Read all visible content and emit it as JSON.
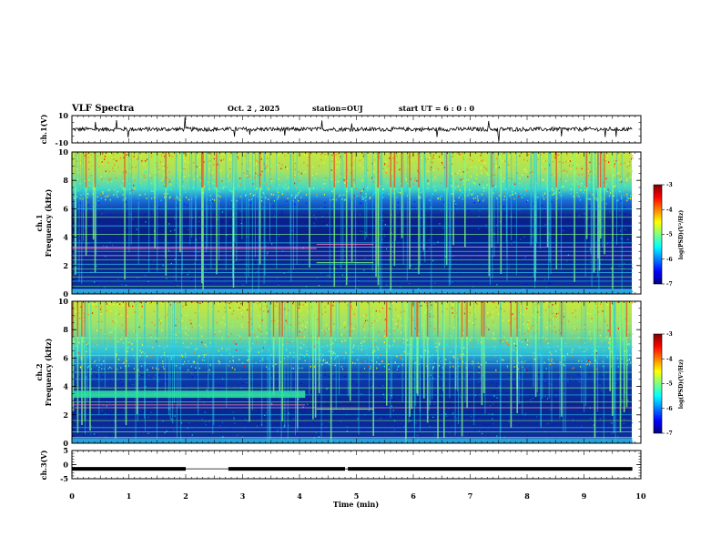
{
  "header": {
    "title": "VLF Spectra",
    "date": "Oct. 2 , 2025",
    "station": "station=OUJ",
    "start": "start  UT =  6 : 0  : 0"
  },
  "chart_data": [
    {
      "type": "line",
      "name": "ch1-waveform",
      "ylabel": "ch.1(V)",
      "ylim": [
        -10,
        10
      ],
      "yticks": [
        "10",
        "-10"
      ],
      "xlim": [
        0,
        10
      ],
      "baseline": 0,
      "color": "#000000"
    },
    {
      "type": "heatmap",
      "name": "ch1-spectrogram",
      "ylabel_line1": "ch.1",
      "ylabel_line2": "Frequency (kHz)",
      "ylim": [
        0,
        10
      ],
      "yticks": [
        "0",
        "2",
        "4",
        "6",
        "8",
        "10"
      ],
      "xlim": [
        0,
        10
      ],
      "data_end_min": 9.85,
      "colorbar": {
        "label": "log(PSD)(V²/Hz)",
        "range": [
          -7,
          -3
        ],
        "ticks": [
          "-3",
          "-4",
          "-5",
          "-6",
          "-7"
        ]
      }
    },
    {
      "type": "heatmap",
      "name": "ch2-spectrogram",
      "ylabel_line1": "ch.2",
      "ylabel_line2": "Frequency (kHz)",
      "ylim": [
        0,
        10
      ],
      "yticks": [
        "0",
        "2",
        "4",
        "6",
        "8",
        "10"
      ],
      "xlim": [
        0,
        10
      ],
      "data_end_min": 9.85,
      "colorbar": {
        "label": "log(PSD)(V²/Hz)",
        "range": [
          -7,
          -3
        ],
        "ticks": [
          "-3",
          "-4",
          "-5",
          "-6",
          "-7"
        ]
      }
    },
    {
      "type": "line",
      "name": "ch3-waveform",
      "ylabel": "ch.3(V)",
      "ylim": [
        -5,
        5
      ],
      "yticks": [
        "5",
        "0",
        "-5"
      ],
      "xlim": [
        0,
        10
      ],
      "baseline": -1.5,
      "gaps_min": [
        [
          2.0,
          2.75
        ],
        [
          4.8,
          4.85
        ]
      ],
      "color": "#000000"
    }
  ],
  "xaxis": {
    "label": "Time (min)",
    "ticks": [
      "0",
      "1",
      "2",
      "3",
      "4",
      "5",
      "6",
      "7",
      "8",
      "9",
      "10"
    ]
  }
}
